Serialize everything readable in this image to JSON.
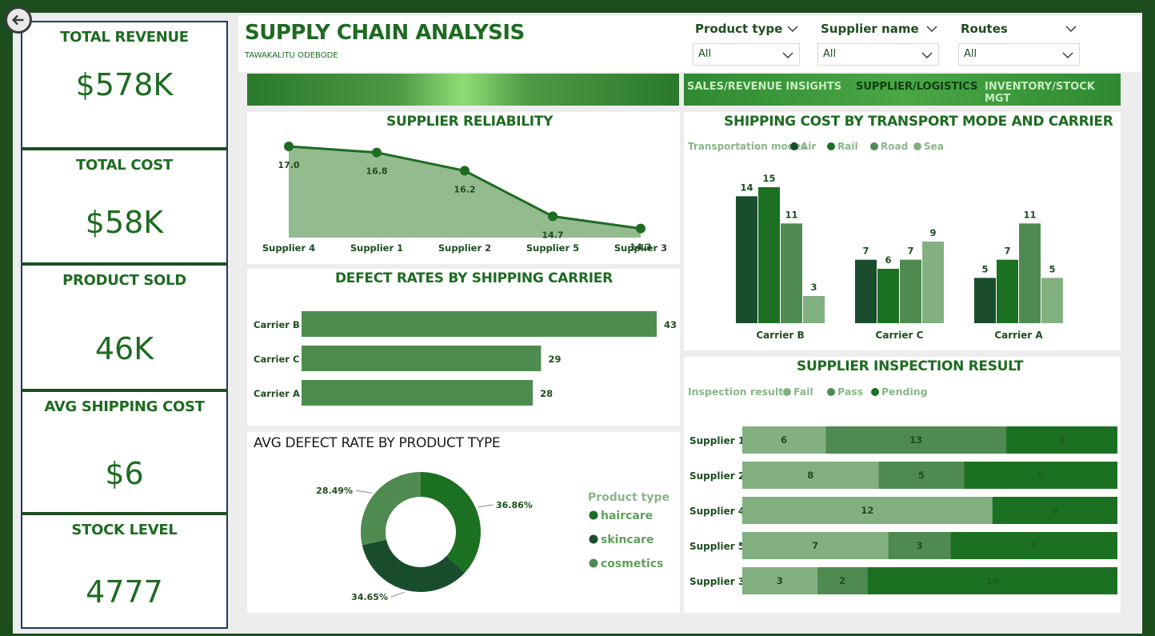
{
  "header": {
    "title": "SUPPLY CHAIN ANALYSIS",
    "subtitle": "TAWAKALITU ODEBODE"
  },
  "filters": [
    {
      "label": "Product type",
      "value": "All"
    },
    {
      "label": "Supplier name",
      "value": "All"
    },
    {
      "label": "Routes",
      "value": "All"
    }
  ],
  "tabs": [
    "SALES/REVENUE INSIGHTS",
    "SUPPLIER/LOGISTICS",
    "INVENTORY/STOCK MGT"
  ],
  "active_tab": "SUPPLIER/LOGISTICS",
  "kpis": [
    {
      "title": "TOTAL REVENUE",
      "value": "$578K"
    },
    {
      "title": "TOTAL COST",
      "value": "$58K"
    },
    {
      "title": "PRODUCT SOLD",
      "value": "46K"
    },
    {
      "title": "AVG SHIPPING COST",
      "value": "$6"
    },
    {
      "title": "STOCK LEVEL",
      "value": "4777"
    }
  ],
  "colors": {
    "dark_green": "#1e4d20",
    "brand_green": "#1e6b22",
    "area_fill": "#93bb8f",
    "bar_green": "#4d8c4e"
  },
  "chart_data": [
    {
      "type": "area",
      "title": "SUPPLIER RELIABILITY",
      "categories": [
        "Supplier 4",
        "Supplier 1",
        "Supplier 2",
        "Supplier 5",
        "Supplier 3"
      ],
      "values": [
        17.0,
        16.8,
        16.2,
        14.7,
        14.3
      ],
      "labels": [
        "17.0",
        "16.8",
        "16.2",
        "14.7",
        "14.3"
      ]
    },
    {
      "type": "bar",
      "orientation": "horizontal",
      "title": "DEFECT RATES BY SHIPPING CARRIER",
      "categories": [
        "Carrier B",
        "Carrier C",
        "Carrier A"
      ],
      "values": [
        43,
        29,
        28
      ]
    },
    {
      "type": "pie",
      "donut": true,
      "title": "AVG DEFECT RATE BY PRODUCT TYPE",
      "legend_title": "Product type",
      "slices": [
        {
          "name": "haircare",
          "value": 36.86,
          "label": "36.86%",
          "color": "#1c7022"
        },
        {
          "name": "skincare",
          "value": 34.65,
          "label": "34.65%",
          "color": "#1a4d2e"
        },
        {
          "name": "cosmetics",
          "value": 28.49,
          "label": "28.49%",
          "color": "#4f8a50"
        }
      ]
    },
    {
      "type": "bar",
      "title": "SHIPPING COST BY TRANSPORT MODE AND CARRIER",
      "legend_title": "Transportation modes",
      "categories": [
        "Carrier B",
        "Carrier C",
        "Carrier A"
      ],
      "series": [
        {
          "name": "Air",
          "values": [
            14,
            7,
            5
          ],
          "color": "#1a4d2e"
        },
        {
          "name": "Rail",
          "values": [
            15,
            6,
            7
          ],
          "color": "#1c7022"
        },
        {
          "name": "Road",
          "values": [
            11,
            7,
            11
          ],
          "color": "#4f8a50"
        },
        {
          "name": "Sea",
          "values": [
            3,
            9,
            5
          ],
          "color": "#82b081"
        }
      ]
    },
    {
      "type": "bar",
      "stacked": true,
      "orientation": "horizontal",
      "title": "SUPPLIER INSPECTION RESULT",
      "legend_title": "Inspection results",
      "categories": [
        "Supplier 1",
        "Supplier 2",
        "Supplier 4",
        "Supplier 5",
        "Supplier 3"
      ],
      "series": [
        {
          "name": "Fail",
          "values": [
            6,
            8,
            12,
            7,
            3
          ],
          "color": "#82b081"
        },
        {
          "name": "Pass",
          "values": [
            13,
            5,
            null,
            3,
            2
          ],
          "color": "#4f8a50"
        },
        {
          "name": "Pending",
          "values": [
            8,
            9,
            6,
            8,
            10
          ],
          "color": "#1c7022"
        }
      ]
    }
  ]
}
